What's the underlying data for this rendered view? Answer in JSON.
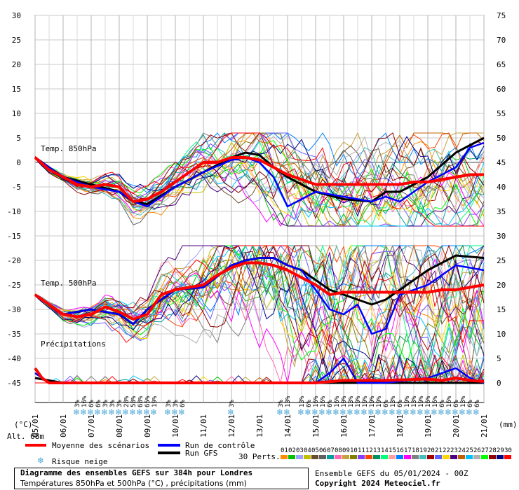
{
  "chart_data": {
    "type": "line",
    "left_axis": {
      "unit": "(°C)",
      "ticks": [
        30,
        25,
        20,
        15,
        10,
        5,
        0,
        -5,
        -10,
        -15,
        -20,
        -25,
        -30,
        -35,
        -40,
        -45
      ],
      "ylim": [
        -45,
        30
      ]
    },
    "right_axis": {
      "unit": "(mm)",
      "ticks": [
        75,
        70,
        65,
        60,
        55,
        50,
        45,
        40,
        35,
        30,
        25,
        20,
        15,
        10,
        5,
        0
      ],
      "ylim": [
        0,
        75
      ]
    },
    "x_labels": [
      "05/01",
      "06/01",
      "07/01",
      "08/01",
      "09/01",
      "10/01",
      "11/01",
      "12/01",
      "13/01",
      "14/01",
      "15/01",
      "16/01",
      "17/01",
      "18/01",
      "19/01",
      "20/01",
      "21/01"
    ],
    "x_hours": [
      0,
      24,
      48,
      72,
      96,
      120,
      144,
      168,
      192,
      216,
      240,
      264,
      288,
      312,
      336,
      360,
      384
    ],
    "panel_labels": {
      "t850": "Temp. 850hPa",
      "t500": "Temp. 500hPa",
      "precip": "Précipitations"
    },
    "altitude": "Alt. 68m",
    "snow_risk": [
      {
        "hour": 36,
        "pct": "3%"
      },
      {
        "hour": 42,
        "pct": "16%"
      },
      {
        "hour": 48,
        "pct": "6%"
      },
      {
        "hour": 54,
        "pct": "6%"
      },
      {
        "hour": 60,
        "pct": "3%"
      },
      {
        "hour": 66,
        "pct": "3%"
      },
      {
        "hour": 72,
        "pct": "3%"
      },
      {
        "hour": 78,
        "pct": "28%"
      },
      {
        "hour": 84,
        "pct": "58%"
      },
      {
        "hour": 90,
        "pct": "68%"
      },
      {
        "hour": 96,
        "pct": "65%"
      },
      {
        "hour": 102,
        "pct": "19%"
      },
      {
        "hour": 114,
        "pct": "3%"
      },
      {
        "hour": 120,
        "pct": "3%"
      },
      {
        "hour": 126,
        "pct": "6%"
      },
      {
        "hour": 168,
        "pct": "3%"
      },
      {
        "hour": 210,
        "pct": "3%"
      },
      {
        "hour": 216,
        "pct": "13%"
      },
      {
        "hour": 228,
        "pct": "13%"
      },
      {
        "hour": 234,
        "pct": "6%"
      },
      {
        "hour": 240,
        "pct": "16%"
      },
      {
        "hour": 246,
        "pct": "16%"
      },
      {
        "hour": 252,
        "pct": "6%"
      },
      {
        "hour": 258,
        "pct": "16%"
      },
      {
        "hour": 264,
        "pct": "10%"
      },
      {
        "hour": 270,
        "pct": "13%"
      },
      {
        "hour": 276,
        "pct": "19%"
      },
      {
        "hour": 282,
        "pct": "19%"
      },
      {
        "hour": 288,
        "pct": "19%"
      },
      {
        "hour": 294,
        "pct": "19%"
      },
      {
        "hour": 300,
        "pct": "6%"
      },
      {
        "hour": 306,
        "pct": "13%"
      },
      {
        "hour": 312,
        "pct": "6%"
      },
      {
        "hour": 318,
        "pct": "19%"
      },
      {
        "hour": 324,
        "pct": "13%"
      },
      {
        "hour": 330,
        "pct": "19%"
      },
      {
        "hour": 336,
        "pct": "16%"
      },
      {
        "hour": 342,
        "pct": "16%"
      },
      {
        "hour": 348,
        "pct": "6%"
      },
      {
        "hour": 354,
        "pct": "16%"
      },
      {
        "hour": 360,
        "pct": "6%"
      },
      {
        "hour": 366,
        "pct": "13%"
      },
      {
        "hour": 372,
        "pct": "6%"
      },
      {
        "hour": 378,
        "pct": "6%"
      }
    ],
    "series": [
      {
        "name": "Moyenne des scénarios",
        "color": "#ff0000",
        "t850_hours": [
          0,
          12,
          24,
          36,
          48,
          60,
          72,
          84,
          96,
          108,
          120,
          132,
          144,
          156,
          168,
          180,
          192,
          204,
          216,
          228,
          240,
          252,
          264,
          276,
          288,
          300,
          312,
          324,
          336,
          348,
          360,
          372,
          384
        ],
        "t850": [
          1,
          -1.5,
          -3,
          -4.5,
          -5,
          -4.5,
          -5,
          -8,
          -7.5,
          -6,
          -4,
          -2,
          0,
          0,
          1,
          1,
          0.5,
          -1,
          -2.5,
          -3.5,
          -4.5,
          -4.5,
          -4.5,
          -4.5,
          -4.5,
          -4.5,
          -4.5,
          -4,
          -4,
          -3.5,
          -3,
          -2.5,
          -2.5
        ],
        "t500_hours": [
          0,
          12,
          24,
          36,
          48,
          60,
          72,
          84,
          96,
          108,
          120,
          132,
          144,
          156,
          168,
          180,
          192,
          204,
          216,
          228,
          240,
          252,
          264,
          276,
          288,
          300,
          312,
          324,
          336,
          348,
          360,
          372,
          384
        ],
        "t500": [
          -27,
          -29,
          -31,
          -31.5,
          -31,
          -29.5,
          -30.5,
          -32,
          -31,
          -27,
          -26,
          -25.5,
          -25,
          -23,
          -21.5,
          -20.5,
          -20.5,
          -21,
          -22,
          -23.5,
          -25,
          -27,
          -26.5,
          -26.5,
          -26.5,
          -26.5,
          -26.5,
          -26.5,
          -26.5,
          -26,
          -26,
          -25.5,
          -25
        ],
        "precip_hours": [
          0,
          6,
          12,
          24,
          240,
          264,
          300,
          336,
          348,
          360,
          372,
          384
        ],
        "precip": [
          3,
          1,
          0,
          0,
          0,
          0.5,
          0.5,
          0.8,
          0.5,
          1,
          0.5,
          0.3
        ]
      },
      {
        "name": "Run de contrôle",
        "color": "#0000ff",
        "t850_hours": [
          0,
          24,
          48,
          72,
          84,
          96,
          120,
          144,
          168,
          180,
          192,
          204,
          216,
          240,
          264,
          288,
          300,
          312,
          336,
          360,
          372,
          384
        ],
        "t850": [
          1,
          -3,
          -5,
          -6,
          -8,
          -9,
          -5,
          -2,
          0.5,
          1,
          0,
          -3,
          -9,
          -6,
          -7,
          -8,
          -7,
          -8,
          -4,
          -1,
          3,
          4
        ],
        "t500_hours": [
          0,
          24,
          48,
          72,
          84,
          96,
          120,
          144,
          168,
          180,
          192,
          204,
          216,
          228,
          240,
          252,
          264,
          276,
          288,
          300,
          312,
          336,
          360,
          384
        ],
        "t500": [
          -27,
          -31,
          -30,
          -31,
          -33,
          -30,
          -26,
          -25.5,
          -21,
          -20,
          -19.5,
          -19.5,
          -21,
          -22,
          -26,
          -30,
          -31,
          -29,
          -35,
          -34,
          -27,
          -25,
          -21,
          -22
        ],
        "precip_hours": [
          0,
          12,
          24,
          216,
          240,
          252,
          264,
          276,
          300,
          336,
          360,
          372,
          384
        ],
        "precip": [
          2,
          0,
          0,
          0,
          0,
          2,
          5,
          0,
          0,
          1,
          3,
          1,
          0
        ]
      },
      {
        "name": "Run GFS",
        "color": "#000000",
        "t850_hours": [
          0,
          24,
          48,
          72,
          84,
          96,
          120,
          144,
          168,
          180,
          192,
          204,
          216,
          240,
          264,
          288,
          300,
          312,
          336,
          360,
          372,
          384
        ],
        "t850": [
          1,
          -3,
          -4.5,
          -6,
          -8,
          -8.5,
          -5,
          -2,
          1,
          2,
          1.5,
          -1,
          -3,
          -6,
          -7.5,
          -8,
          -6,
          -6,
          -3,
          2,
          3.5,
          5
        ],
        "t500_hours": [
          0,
          24,
          48,
          72,
          84,
          96,
          120,
          144,
          168,
          180,
          192,
          204,
          216,
          228,
          240,
          252,
          264,
          276,
          288,
          300,
          312,
          336,
          360,
          384
        ],
        "t500": [
          -27,
          -31,
          -30,
          -31,
          -33,
          -30,
          -26,
          -25.5,
          -21,
          -20,
          -19.5,
          -19.5,
          -21,
          -22,
          -24,
          -26,
          -27,
          -28,
          -29,
          -28,
          -26,
          -22,
          -19,
          -19.5
        ],
        "precip_hours": [
          0,
          24,
          216,
          384
        ],
        "precip": [
          1,
          0,
          0,
          0
        ]
      }
    ]
  },
  "legend": {
    "mean": "Moyenne des scénarios",
    "control": "Run de contrôle",
    "gfs": "Run GFS",
    "snow": "Risque neige",
    "perts_label": "30 Perts.",
    "pert_numbers": [
      "01",
      "02",
      "03",
      "04",
      "05",
      "06",
      "07",
      "08",
      "09",
      "10",
      "11",
      "12",
      "13",
      "14",
      "15",
      "16",
      "17",
      "18",
      "19",
      "20",
      "21",
      "22",
      "23",
      "24",
      "25",
      "26",
      "27",
      "28",
      "29",
      "30"
    ],
    "pert_colors": [
      "#ff8c00",
      "#00c000",
      "#a0a0ff",
      "#c0c000",
      "#6b4c2b",
      "#606060",
      "#00a0a0",
      "#ff69b4",
      "#c8a040",
      "#808000",
      "#8040ff",
      "#ff4500",
      "#009060",
      "#00ff80",
      "#ffa0a0",
      "#0080ff",
      "#ff00ff",
      "#808080",
      "#40c0c0",
      "#a00000",
      "#6060ff",
      "#ffd700",
      "#4b0082",
      "#c06000",
      "#00c0ff",
      "#b0b0b0",
      "#00ff00",
      "#8b0000",
      "#000080",
      "#ff0000"
    ]
  },
  "footer": {
    "title": "Diagramme des ensembles GEFS sur 384h pour Londres",
    "subtitle": "Températures 850hPa et 500hPa (°C) , précipitations (mm)",
    "run": "Ensemble GEFS du 05/01/2024 - 00Z",
    "copyright": "Copyright 2024 Meteociel.fr"
  }
}
